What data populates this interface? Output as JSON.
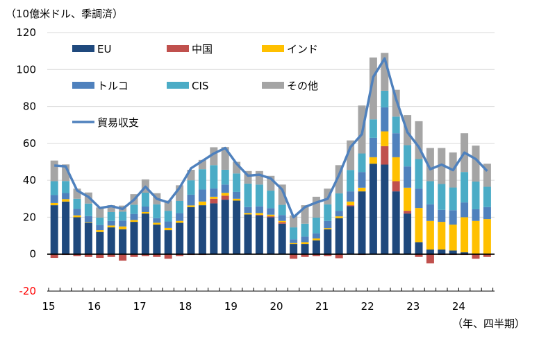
{
  "chart_data": {
    "type": "bar",
    "stacked": true,
    "unit_label": "（10億米ドル、季調済）",
    "xlabel": "（年、四半期）",
    "ylim": [
      -20,
      120
    ],
    "yticks": [
      120,
      100,
      80,
      60,
      40,
      20,
      0,
      -20
    ],
    "year_labels": [
      "15",
      "16",
      "17",
      "18",
      "19",
      "20",
      "21",
      "22",
      "23",
      "24"
    ],
    "grid": true,
    "legend_position": "top-left",
    "categories": [
      "15Q1",
      "15Q2",
      "15Q3",
      "15Q4",
      "16Q1",
      "16Q2",
      "16Q3",
      "16Q4",
      "17Q1",
      "17Q2",
      "17Q3",
      "17Q4",
      "18Q1",
      "18Q2",
      "18Q3",
      "18Q4",
      "19Q1",
      "19Q2",
      "19Q3",
      "19Q4",
      "20Q1",
      "20Q2",
      "20Q3",
      "20Q4",
      "21Q1",
      "21Q2",
      "21Q3",
      "21Q4",
      "22Q1",
      "22Q2",
      "22Q3",
      "22Q4",
      "23Q1",
      "23Q2",
      "23Q3",
      "23Q4",
      "24Q1",
      "24Q2",
      "24Q3"
    ],
    "series": [
      {
        "name": "EU",
        "color": "#1f497d",
        "values": [
          26.5,
          28.5,
          20,
          17,
          12,
          14.5,
          13.5,
          17.5,
          22,
          16,
          13,
          17,
          25.5,
          26.5,
          27.5,
          29.5,
          29,
          21.5,
          21,
          20,
          16.5,
          5.5,
          5.5,
          7.5,
          13.5,
          19.5,
          26,
          34,
          49,
          48.5,
          34,
          22,
          6.5,
          2.5,
          2.5,
          2,
          1,
          0,
          0
        ]
      },
      {
        "name": "中国",
        "color": "#c0504d",
        "values": [
          -2,
          -0.5,
          -1,
          -1.5,
          -2,
          -1.5,
          -3.5,
          -1.5,
          -1,
          -1.5,
          -2.5,
          -1,
          -0.5,
          -0.5,
          2.5,
          2.2,
          0,
          0,
          0.3,
          0.5,
          0.8,
          -2.5,
          -1.5,
          -1,
          -1,
          -2.2,
          0.5,
          -0.5,
          0,
          10,
          5.5,
          1.5,
          -1.5,
          -5,
          -0.5,
          -0.5,
          -0.5,
          -2.5,
          -1.5
        ]
      },
      {
        "name": "インド",
        "color": "#ffc000",
        "values": [
          1.2,
          1.3,
          1,
          0.3,
          1,
          1,
          1.5,
          1,
          0.8,
          1,
          1.2,
          1,
          0.9,
          2,
          1.1,
          1.5,
          1,
          0.8,
          1,
          0.9,
          0.7,
          0.5,
          1,
          1,
          0.6,
          1,
          2,
          2,
          3.5,
          8,
          13,
          12.5,
          18.5,
          15.5,
          15,
          14,
          19,
          18,
          19
        ]
      },
      {
        "name": "トルコ",
        "color": "#4f81bd",
        "values": [
          4.3,
          3.3,
          3.5,
          3.3,
          2.8,
          2.5,
          3.2,
          3.3,
          3,
          2.5,
          3.5,
          4.2,
          5.8,
          6.5,
          4.5,
          4.5,
          3.7,
          3.2,
          3.6,
          3.5,
          3.2,
          2,
          3,
          2.8,
          3.9,
          3,
          5.5,
          8.5,
          10.5,
          13,
          13,
          11.5,
          10.5,
          9,
          6.5,
          7.8,
          8,
          6.3,
          6.5
        ]
      },
      {
        "name": "CIS",
        "color": "#4bacc6",
        "values": [
          7.5,
          6.5,
          5.5,
          6.8,
          4,
          4.8,
          4.8,
          5,
          7.5,
          7.5,
          5.8,
          6.6,
          7.8,
          11,
          12.6,
          8,
          10,
          12.7,
          11.8,
          9.5,
          5.5,
          6.5,
          7,
          8.5,
          9,
          9.4,
          11.6,
          10,
          10,
          9,
          9,
          11.5,
          16,
          12.5,
          14,
          12.3,
          16.5,
          15,
          11
        ]
      },
      {
        "name": "その他",
        "color": "#a5a5a5",
        "values": [
          11.2,
          9,
          5.5,
          6,
          5.5,
          3.7,
          3.3,
          5.7,
          7.2,
          6,
          5.5,
          8.5,
          5.7,
          5,
          9.7,
          12.3,
          6.3,
          6.8,
          7.3,
          8,
          11,
          6.5,
          10,
          11.3,
          8.5,
          15.3,
          16,
          26,
          33.5,
          20.5,
          14.5,
          16.3,
          20.5,
          18,
          19.5,
          19,
          21,
          19.5,
          12.5
        ]
      },
      {
        "name": "貿易収支",
        "color": "#4f81bd",
        "type": "line",
        "values": [
          48,
          47.5,
          34.5,
          31,
          25,
          26,
          24.5,
          29.5,
          36.5,
          30,
          28,
          36,
          46.5,
          50.5,
          54.5,
          57.5,
          49,
          42.5,
          43,
          41,
          35,
          20,
          25.5,
          28,
          30,
          43,
          58,
          65,
          96,
          106,
          84,
          66,
          58,
          46,
          48.5,
          45.5,
          55,
          51.5,
          45
        ]
      }
    ]
  }
}
